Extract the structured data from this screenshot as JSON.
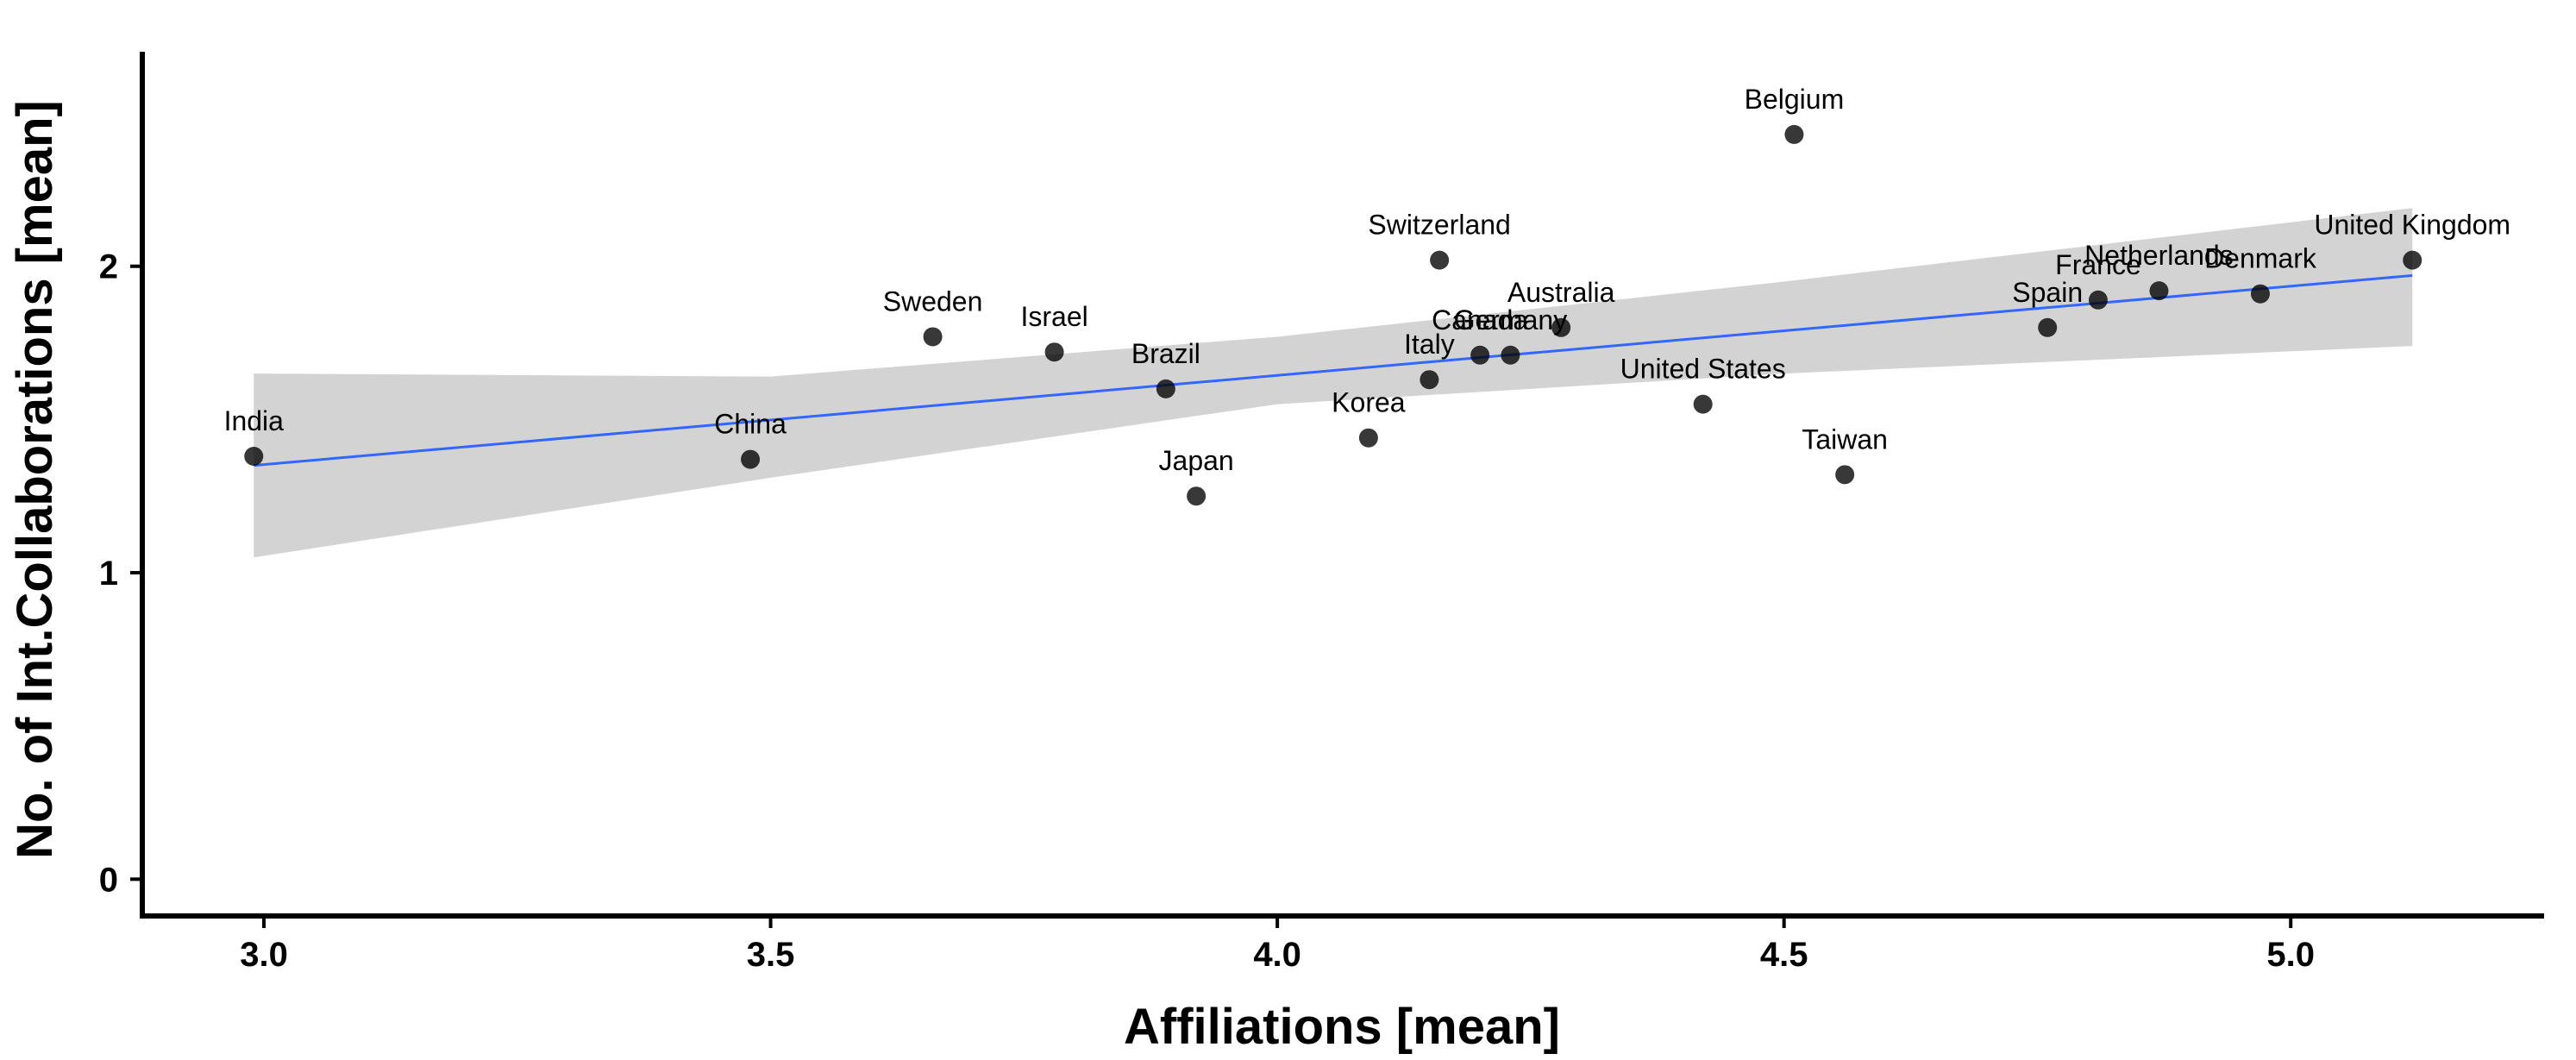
{
  "chart_data": {
    "type": "scatter",
    "xlabel": "Affiliations [mean]",
    "ylabel": "No. of Int.Collaborations [mean]",
    "xlim": [
      2.88,
      5.25
    ],
    "ylim": [
      -0.12,
      2.7
    ],
    "x_ticks": [
      3.0,
      3.5,
      4.0,
      4.5,
      5.0
    ],
    "x_tick_labels": [
      "3.0",
      "3.5",
      "4.0",
      "4.5",
      "5.0"
    ],
    "y_ticks": [
      0,
      1,
      2
    ],
    "y_tick_labels": [
      "0",
      "1",
      "2"
    ],
    "grid": false,
    "legend": "none",
    "point_color": "#000000",
    "points": [
      {
        "label": "India",
        "x": 2.99,
        "y": 1.38
      },
      {
        "label": "China",
        "x": 3.48,
        "y": 1.37
      },
      {
        "label": "Sweden",
        "x": 3.66,
        "y": 1.77
      },
      {
        "label": "Israel",
        "x": 3.78,
        "y": 1.72
      },
      {
        "label": "Brazil",
        "x": 3.89,
        "y": 1.6
      },
      {
        "label": "Japan",
        "x": 3.92,
        "y": 1.25
      },
      {
        "label": "Korea",
        "x": 4.09,
        "y": 1.44
      },
      {
        "label": "Italy",
        "x": 4.15,
        "y": 1.63
      },
      {
        "label": "Switzerland",
        "x": 4.16,
        "y": 2.02
      },
      {
        "label": "Canada",
        "x": 4.2,
        "y": 1.71
      },
      {
        "label": "Germany",
        "x": 4.23,
        "y": 1.71
      },
      {
        "label": "Australia",
        "x": 4.28,
        "y": 1.8
      },
      {
        "label": "United States",
        "x": 4.42,
        "y": 1.55
      },
      {
        "label": "Belgium",
        "x": 4.51,
        "y": 2.43
      },
      {
        "label": "Taiwan",
        "x": 4.56,
        "y": 1.32
      },
      {
        "label": "Spain",
        "x": 4.76,
        "y": 1.8
      },
      {
        "label": "France",
        "x": 4.81,
        "y": 1.89
      },
      {
        "label": "Netherlands",
        "x": 4.87,
        "y": 1.92
      },
      {
        "label": "Denmark",
        "x": 4.97,
        "y": 1.91
      },
      {
        "label": "United Kingdom",
        "x": 5.12,
        "y": 2.02
      }
    ],
    "trend_line": {
      "color": "#3366FF",
      "x": [
        2.99,
        5.12
      ],
      "y": [
        1.35,
        1.97
      ]
    },
    "confidence_band": {
      "color": "#d3d3d3",
      "x": [
        2.99,
        3.5,
        4.0,
        4.5,
        5.12
      ],
      "lower": [
        1.05,
        1.31,
        1.55,
        1.65,
        1.74
      ],
      "upper": [
        1.65,
        1.64,
        1.77,
        1.95,
        2.19
      ]
    }
  }
}
